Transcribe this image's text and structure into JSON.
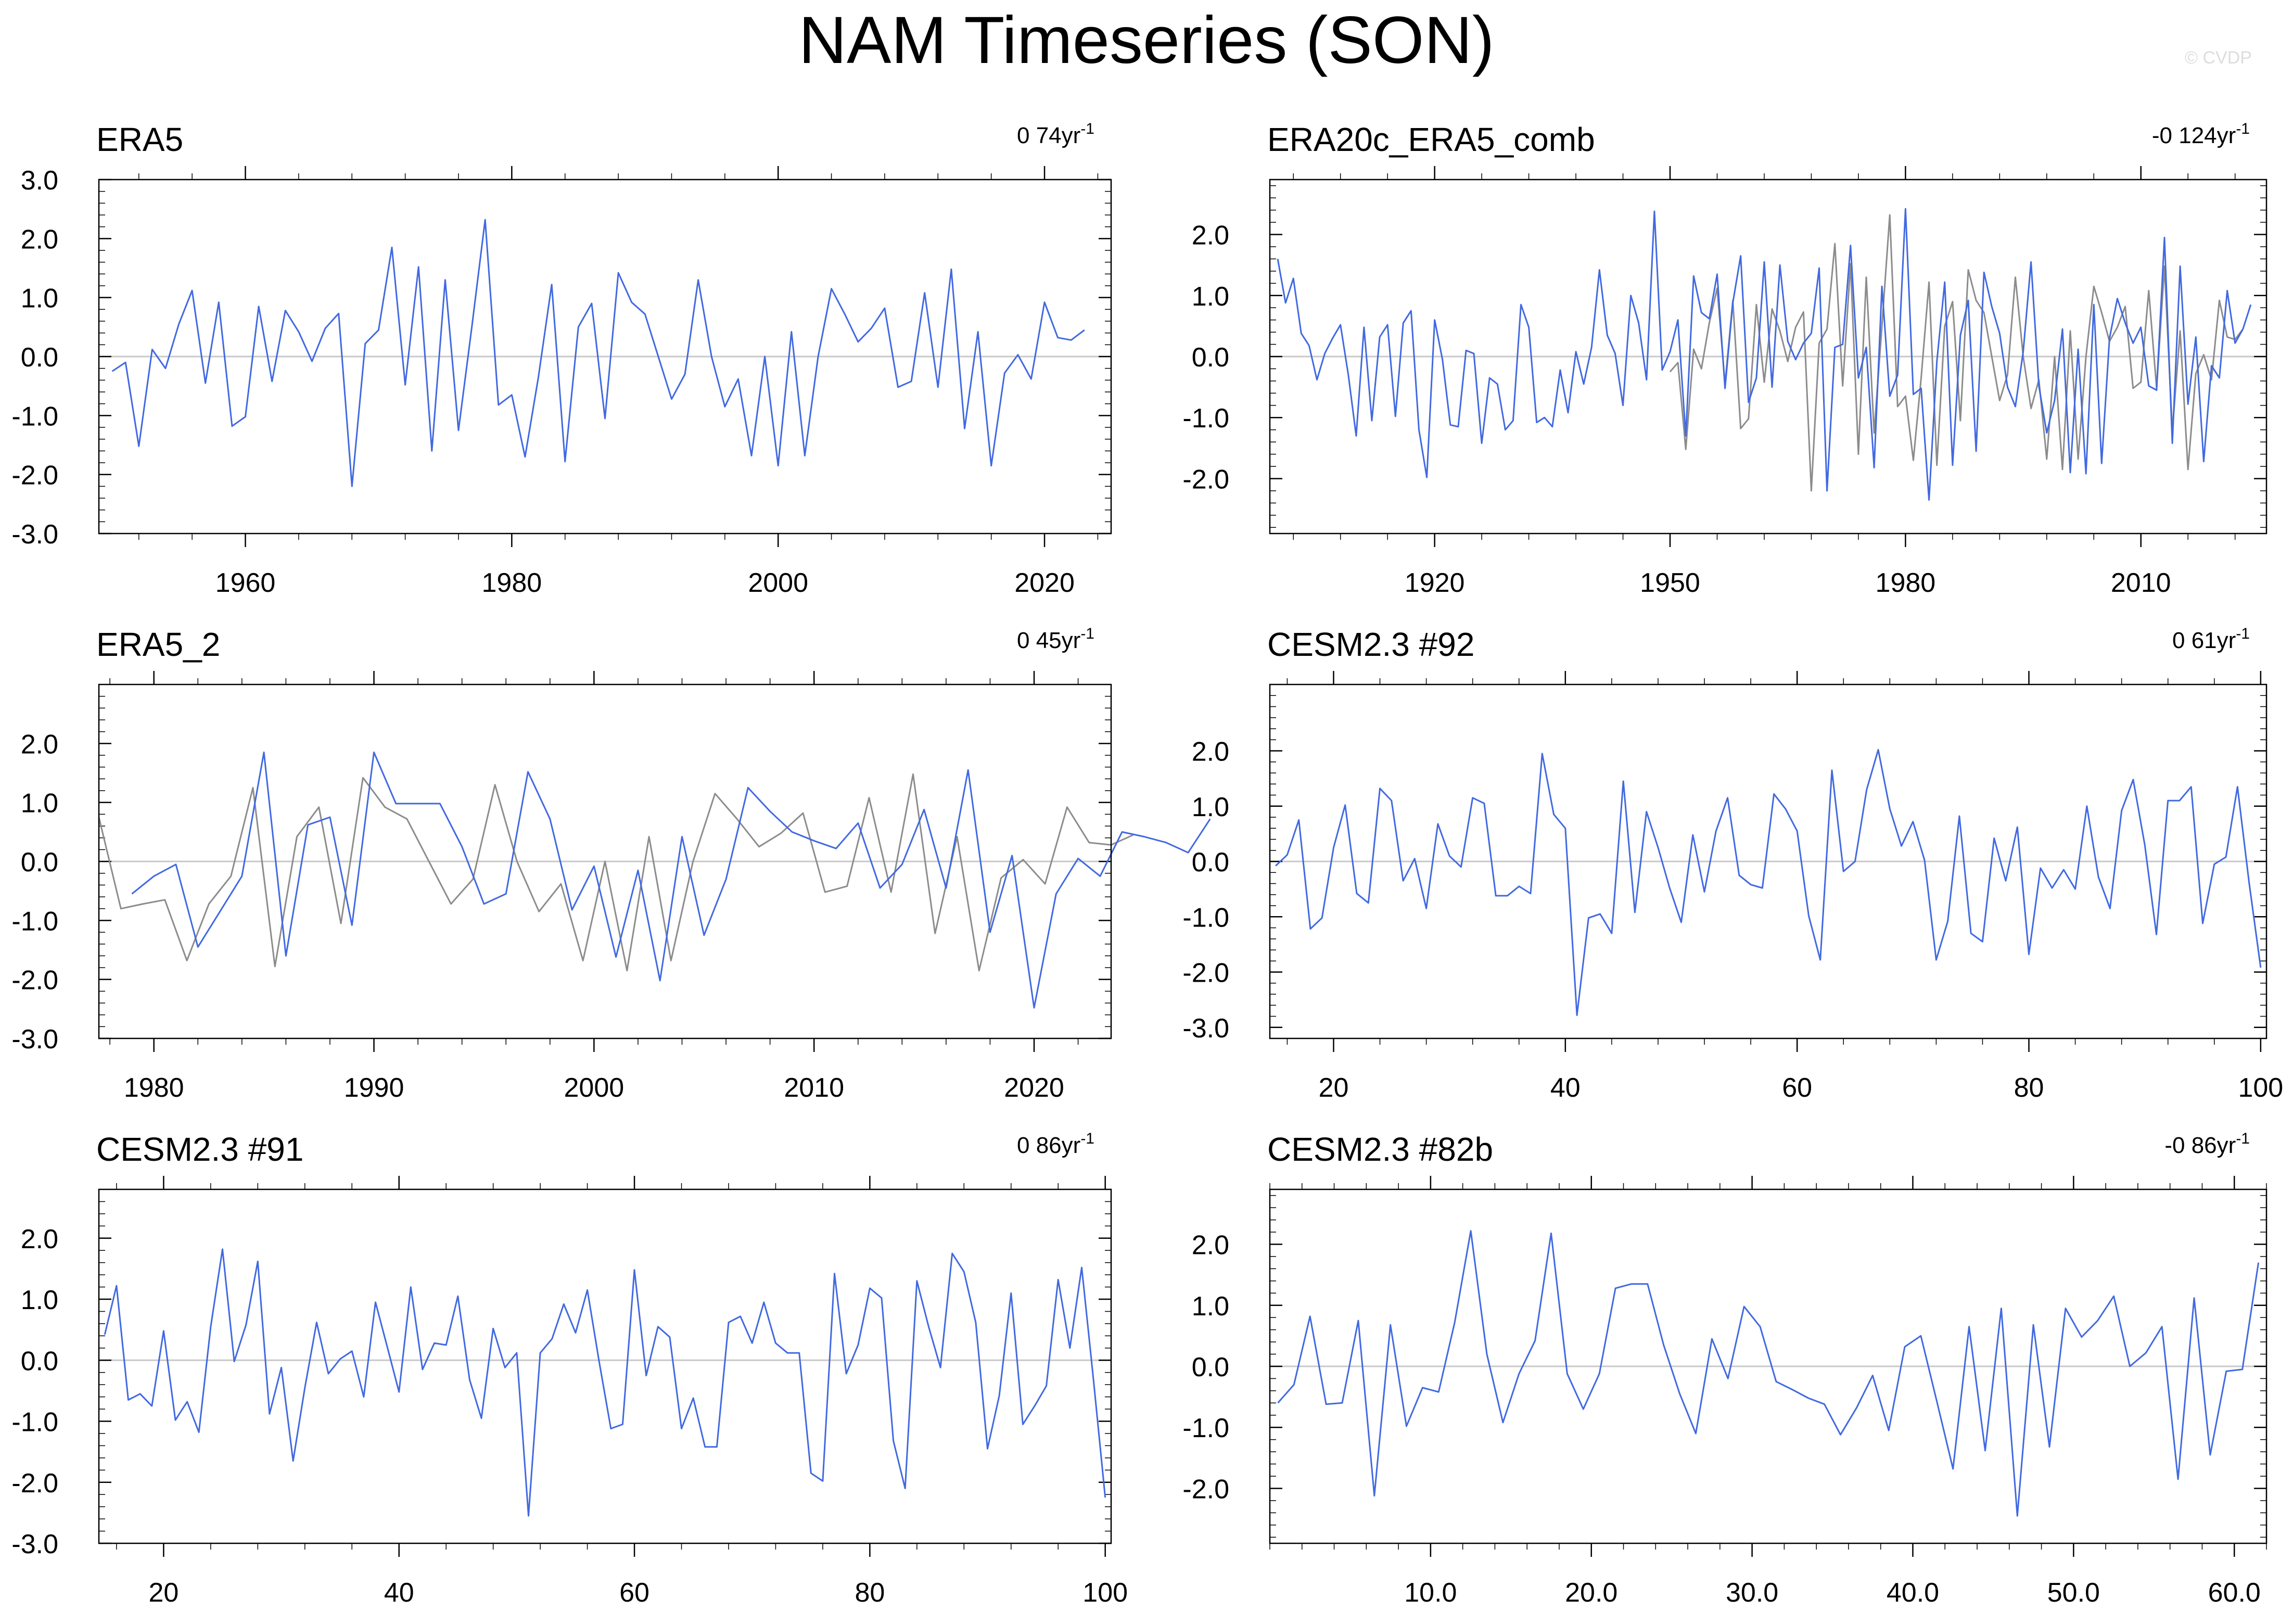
{
  "figure": {
    "title": "NAM Timeseries (SON)",
    "watermark": "© CVDP",
    "colors": {
      "primary": "#4169e1",
      "secondary": "#8c8c8c",
      "zero_line": "#c8c8c8",
      "axis": "#000000"
    }
  },
  "chart_data": [
    {
      "type": "line",
      "title": "ERA5",
      "trend_value": "0 74",
      "trend_unit": "yr",
      "trend_exp": "-1",
      "xlim": [
        1949,
        2025
      ],
      "ylim": [
        -3.0,
        3.0
      ],
      "xticks": [
        1960,
        1980,
        2000,
        2020
      ],
      "xtick_labels": [
        "1960",
        "1980",
        "2000",
        "2020"
      ],
      "yticks": [
        -3.0,
        -2.0,
        -1.0,
        0.0,
        1.0,
        2.0,
        3.0
      ],
      "ytick_labels": [
        "-3.0",
        "-2.0",
        "-1.0",
        "0.0",
        "1.0",
        "2.0",
        "3.0"
      ],
      "x_start": 1950,
      "x_step": 1,
      "series": [
        {
          "values": [
            -0.25,
            -0.1,
            -1.52,
            0.12,
            -0.2,
            0.55,
            1.12,
            -0.45,
            0.92,
            -1.18,
            -1.02,
            0.85,
            -0.42,
            0.78,
            0.42,
            -0.08,
            0.48,
            0.73,
            -2.2,
            0.22,
            0.45,
            1.85,
            -0.48,
            1.52,
            -1.6,
            1.3,
            -1.25,
            0.5,
            2.32,
            -0.82,
            -0.65,
            -1.7,
            -0.35,
            1.22,
            -1.78,
            0.5,
            0.9,
            -1.05,
            1.42,
            0.92,
            0.72,
            0.0,
            -0.72,
            -0.3,
            1.3,
            0.0,
            -0.85,
            -0.38,
            -1.68,
            0.0,
            -1.85,
            0.42,
            -1.68,
            0.0,
            1.15,
            0.72,
            0.25,
            0.48,
            0.82,
            -0.52,
            -0.42,
            1.08,
            -0.52,
            1.48,
            -1.22,
            0.42,
            -1.85,
            -0.28,
            0.03,
            -0.38,
            0.92,
            0.32,
            0.28,
            0.45
          ]
        }
      ]
    },
    {
      "type": "line",
      "title": "ERA20c_ERA5_comb",
      "trend_value": "-0 124",
      "trend_unit": "yr",
      "trend_exp": "-1",
      "xlim": [
        1899,
        2026
      ],
      "ylim": [
        -2.9,
        2.9
      ],
      "xticks": [
        1920,
        1950,
        1980,
        2010
      ],
      "xtick_labels": [
        "1920",
        "1950",
        "1980",
        "2010"
      ],
      "yticks": [
        -2.0,
        -1.0,
        0.0,
        1.0,
        2.0
      ],
      "ytick_labels": [
        "-2.0",
        "-1.0",
        "0.0",
        "1.0",
        "2.0"
      ],
      "x_start": 1900,
      "x_step": 1,
      "series": [
        {
          "values": [
            1.6,
            0.88,
            1.28,
            0.38,
            0.18,
            -0.38,
            0.05,
            0.3,
            0.52,
            -0.3,
            -1.3,
            0.48,
            -1.05,
            0.32,
            0.52,
            -0.98,
            0.55,
            0.75,
            -1.2,
            -1.98,
            0.6,
            -0.05,
            -1.12,
            -1.15,
            0.1,
            0.05,
            -1.42,
            -0.35,
            -0.45,
            -1.2,
            -1.05,
            0.85,
            0.48,
            -1.08,
            -1.0,
            -1.15,
            -0.22,
            -0.92,
            0.08,
            -0.45,
            0.15,
            1.42,
            0.35,
            0.05,
            -0.8,
            1.0,
            0.55,
            -0.38,
            2.38,
            -0.22,
            0.08,
            0.6,
            -1.3,
            1.32,
            0.72,
            0.62,
            1.35,
            -0.52,
            0.88,
            1.65,
            -0.75,
            -0.35,
            1.55,
            -0.5,
            1.5,
            0.25,
            -0.05,
            0.22,
            0.38,
            1.45,
            -2.2,
            0.15,
            0.2,
            1.82,
            -0.35,
            0.15,
            -1.82,
            1.15,
            -0.65,
            -0.3,
            2.42,
            -0.62,
            -0.52,
            -2.35,
            -0.08,
            1.22,
            -1.78,
            0.35,
            0.92,
            -1.55,
            1.38,
            0.82,
            0.38,
            -0.5,
            -0.82,
            0.08,
            1.55,
            -0.48,
            -1.25,
            -0.72,
            0.45,
            -1.9,
            0.12,
            -1.92,
            0.85,
            -1.75,
            0.3,
            0.95,
            0.55,
            0.22,
            0.48,
            -0.48,
            -0.55,
            1.95,
            -1.42,
            1.48,
            -0.78,
            0.32,
            -1.72,
            -0.15,
            -0.35,
            1.08,
            0.22,
            0.45,
            0.85
          ]
        },
        {
          "x_start": 1950,
          "values": [
            -0.25,
            -0.1,
            -1.52,
            0.12,
            -0.2,
            0.55,
            1.12,
            -0.45,
            0.92,
            -1.18,
            -1.02,
            0.85,
            -0.42,
            0.78,
            0.42,
            -0.08,
            0.48,
            0.73,
            -2.2,
            0.22,
            0.45,
            1.85,
            -0.48,
            1.52,
            -1.6,
            1.3,
            -1.25,
            0.5,
            2.32,
            -0.82,
            -0.65,
            -1.7,
            -0.35,
            1.22,
            -1.78,
            0.5,
            0.9,
            -1.05,
            1.42,
            0.92,
            0.72,
            0.0,
            -0.72,
            -0.3,
            1.3,
            0.0,
            -0.85,
            -0.38,
            -1.68,
            0.0,
            -1.85,
            0.42,
            -1.68,
            0.0,
            1.15,
            0.72,
            0.25,
            0.48,
            0.82,
            -0.52,
            -0.42,
            1.08,
            -0.52,
            1.48,
            -1.22,
            0.42,
            -1.85,
            -0.28,
            0.03,
            -0.38,
            0.92,
            0.32,
            0.28,
            0.45
          ]
        }
      ]
    },
    {
      "type": "line",
      "title": "ERA5_2",
      "trend_value": "0 45",
      "trend_unit": "yr",
      "trend_exp": "-1",
      "xlim": [
        1977.5,
        2023.5
      ],
      "ylim": [
        -3.0,
        3.0
      ],
      "xticks": [
        1980,
        1990,
        2000,
        2010,
        2020
      ],
      "xtick_labels": [
        "1980",
        "1990",
        "2000",
        "2010",
        "2020"
      ],
      "yticks": [
        -3.0,
        -2.0,
        -1.0,
        0.0,
        1.0,
        2.0
      ],
      "ytick_labels": [
        "-3.0",
        "-2.0",
        "-1.0",
        "0.0",
        "1.0",
        "2.0"
      ],
      "x_start": 1979,
      "x_step": 1,
      "series": [
        {
          "values": [
            -0.55,
            -0.25,
            -0.05,
            -1.45,
            -0.85,
            -0.25,
            1.85,
            -1.6,
            0.62,
            0.75,
            -1.08,
            1.85,
            0.98,
            0.98,
            0.98,
            0.25,
            -0.72,
            -0.55,
            1.52,
            0.72,
            -0.82,
            -0.08,
            -1.62,
            -0.15,
            -2.02,
            0.42,
            -1.25,
            -0.3,
            1.25,
            0.85,
            0.5,
            0.35,
            0.22,
            0.65,
            -0.45,
            -0.05,
            0.88,
            -0.45,
            1.55,
            -1.2,
            0.1,
            -2.48,
            -0.55,
            0.05,
            -0.25,
            0.5,
            0.42,
            0.32,
            0.15,
            0.72
          ]
        },
        {
          "x_start": 1977.5,
          "values": [
            0.75,
            -0.8,
            -0.72,
            -0.65,
            -1.68,
            -0.72,
            -0.25,
            1.25,
            -1.78,
            0.42,
            0.92,
            -1.05,
            1.42,
            0.92,
            0.72,
            0.0,
            -0.72,
            -0.3,
            1.3,
            0.0,
            -0.85,
            -0.38,
            -1.68,
            0.0,
            -1.85,
            0.42,
            -1.68,
            0.0,
            1.15,
            0.72,
            0.25,
            0.48,
            0.82,
            -0.52,
            -0.42,
            1.08,
            -0.52,
            1.48,
            -1.22,
            0.42,
            -1.85,
            -0.28,
            0.03,
            -0.38,
            0.92,
            0.32,
            0.28,
            0.45
          ]
        }
      ]
    },
    {
      "type": "line",
      "title": "CESM2.3 #92",
      "trend_value": "0 61",
      "trend_unit": "yr",
      "trend_exp": "-1",
      "xlim": [
        14.5,
        100.5
      ],
      "ylim": [
        -3.2,
        3.2
      ],
      "xticks": [
        20,
        40,
        60,
        80,
        100
      ],
      "xtick_labels": [
        "20",
        "40",
        "60",
        "80",
        "100"
      ],
      "yticks": [
        -3.0,
        -2.0,
        -1.0,
        0.0,
        1.0,
        2.0
      ],
      "ytick_labels": [
        "-3.0",
        "-2.0",
        "-1.0",
        "0.0",
        "1.0",
        "2.0"
      ],
      "x_start": 15,
      "x_step": 1,
      "series": [
        {
          "values": [
            -0.08,
            0.12,
            0.75,
            -1.22,
            -1.02,
            0.25,
            1.02,
            -0.58,
            -0.75,
            1.32,
            1.1,
            -0.35,
            0.05,
            -0.85,
            0.68,
            0.1,
            -0.1,
            1.15,
            1.05,
            -0.62,
            -0.62,
            -0.45,
            -0.58,
            1.95,
            0.85,
            0.6,
            -2.78,
            -1.02,
            -0.95,
            -1.3,
            1.45,
            -0.92,
            0.9,
            0.25,
            -0.48,
            -1.1,
            0.48,
            -0.55,
            0.55,
            1.15,
            -0.25,
            -0.42,
            -0.48,
            1.22,
            0.95,
            0.55,
            -0.98,
            -1.78,
            1.65,
            -0.18,
            0.0,
            1.3,
            2.02,
            0.95,
            0.28,
            0.72,
            0.02,
            -1.78,
            -1.08,
            0.82,
            -1.3,
            -1.45,
            0.42,
            -0.35,
            0.62,
            -1.68,
            -0.12,
            -0.48,
            -0.15,
            -0.5,
            1.0,
            -0.28,
            -0.85,
            0.92,
            1.48,
            0.3,
            -1.32,
            1.1,
            1.1,
            1.35,
            -1.12,
            -0.05,
            0.08,
            1.35,
            -0.38,
            -1.92
          ]
        }
      ]
    },
    {
      "type": "line",
      "title": "CESM2.3 #91",
      "trend_value": "0 86",
      "trend_unit": "yr",
      "trend_exp": "-1",
      "xlim": [
        14.5,
        100.5
      ],
      "ylim": [
        -3.0,
        2.8
      ],
      "xticks": [
        20,
        40,
        60,
        80,
        100
      ],
      "xtick_labels": [
        "20",
        "40",
        "60",
        "80",
        "100"
      ],
      "yticks": [
        -3.0,
        -2.0,
        -1.0,
        0.0,
        1.0,
        2.0
      ],
      "ytick_labels": [
        "-3.0",
        "-2.0",
        "-1.0",
        "0.0",
        "1.0",
        "2.0"
      ],
      "x_start": 15,
      "x_step": 1,
      "series": [
        {
          "values": [
            0.42,
            1.22,
            -0.65,
            -0.55,
            -0.75,
            0.48,
            -0.98,
            -0.68,
            -1.18,
            0.55,
            1.82,
            -0.02,
            0.58,
            1.62,
            -0.88,
            -0.12,
            -1.65,
            -0.45,
            0.62,
            -0.22,
            0.02,
            0.15,
            -0.6,
            0.95,
            0.22,
            -0.52,
            1.2,
            -0.15,
            0.28,
            0.25,
            1.05,
            -0.32,
            -0.95,
            0.52,
            -0.12,
            0.12,
            -2.55,
            0.12,
            0.35,
            0.92,
            0.45,
            1.15,
            -0.02,
            -1.12,
            -1.05,
            1.48,
            -0.25,
            0.55,
            0.38,
            -1.12,
            -0.62,
            -1.42,
            -1.42,
            0.62,
            0.72,
            0.28,
            0.95,
            0.28,
            0.12,
            0.12,
            -1.85,
            -1.98,
            1.42,
            -0.22,
            0.25,
            1.18,
            1.02,
            -1.32,
            -2.1,
            1.3,
            0.55,
            -0.12,
            1.75,
            1.45,
            0.62,
            -1.45,
            -0.58,
            1.1,
            -1.05,
            -0.75,
            -0.42,
            1.32,
            0.2,
            1.52,
            -0.32,
            -2.25
          ]
        }
      ]
    },
    {
      "type": "line",
      "title": "CESM2.3 #82b",
      "trend_value": "-0 86",
      "trend_unit": "yr",
      "trend_exp": "-1",
      "xlim": [
        0.0,
        62.0
      ],
      "ylim": [
        -2.9,
        2.9
      ],
      "xticks": [
        10.0,
        20.0,
        30.0,
        40.0,
        50.0,
        60.0
      ],
      "xtick_labels": [
        "10.0",
        "20.0",
        "30.0",
        "40.0",
        "50.0",
        "60.0"
      ],
      "yticks": [
        -2.0,
        -1.0,
        0.0,
        1.0,
        2.0
      ],
      "ytick_labels": [
        "-2.0",
        "-1.0",
        "0.0",
        "1.0",
        "2.0"
      ],
      "x_start": 0.5,
      "x_step": 1,
      "series": [
        {
          "values": [
            -0.6,
            -0.3,
            0.82,
            -0.62,
            -0.6,
            0.75,
            -2.12,
            0.68,
            -0.98,
            -0.35,
            -0.42,
            0.72,
            2.22,
            0.2,
            -0.92,
            -0.12,
            0.42,
            2.18,
            -0.12,
            -0.7,
            -0.12,
            1.28,
            1.35,
            1.35,
            0.35,
            -0.45,
            -1.1,
            0.45,
            -0.2,
            0.98,
            0.65,
            -0.25,
            -0.38,
            -0.52,
            -0.62,
            -1.12,
            -0.68,
            -0.15,
            -1.05,
            0.32,
            0.5,
            -0.58,
            -1.68,
            0.65,
            -1.38,
            0.95,
            -2.45,
            0.68,
            -1.32,
            0.95,
            0.48,
            0.75,
            1.15,
            0.0,
            0.22,
            0.65,
            -1.85,
            1.12,
            -1.45,
            -0.08,
            -0.05,
            1.7
          ]
        }
      ]
    }
  ]
}
